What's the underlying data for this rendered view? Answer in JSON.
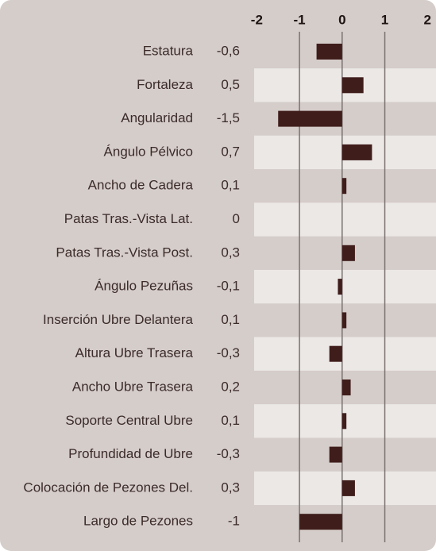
{
  "chart_data": {
    "type": "barh",
    "categories": [
      "Estatura",
      "Fortaleza",
      "Angularidad",
      "Ángulo Pélvico",
      "Ancho de Cadera",
      "Patas Tras.-Vista Lat.",
      "Patas Tras.-Vista Post.",
      "Ángulo Pezuñas",
      "Inserción Ubre Delantera",
      "Altura Ubre Trasera",
      "Ancho Ubre Trasera",
      "Soporte Central Ubre",
      "Profundidad de Ubre",
      "Colocación de Pezones Del.",
      "Largo de Pezones"
    ],
    "values": [
      -0.6,
      0.5,
      -1.5,
      0.7,
      0.1,
      0,
      0.3,
      -0.1,
      0.1,
      -0.3,
      0.2,
      0.1,
      -0.3,
      0.3,
      -1
    ],
    "value_labels": [
      "-0,6",
      "0,5",
      "-1,5",
      "0,7",
      "0,1",
      "0",
      "0,3",
      "-0,1",
      "0,1",
      "-0,3",
      "0,2",
      "0,1",
      "-0,3",
      "0,3",
      "-1"
    ],
    "color": "#3f1d1b",
    "xlim": [
      -2.1,
      2.2
    ],
    "xticks": [
      -2,
      -1,
      0,
      1,
      2
    ],
    "grid": true
  }
}
